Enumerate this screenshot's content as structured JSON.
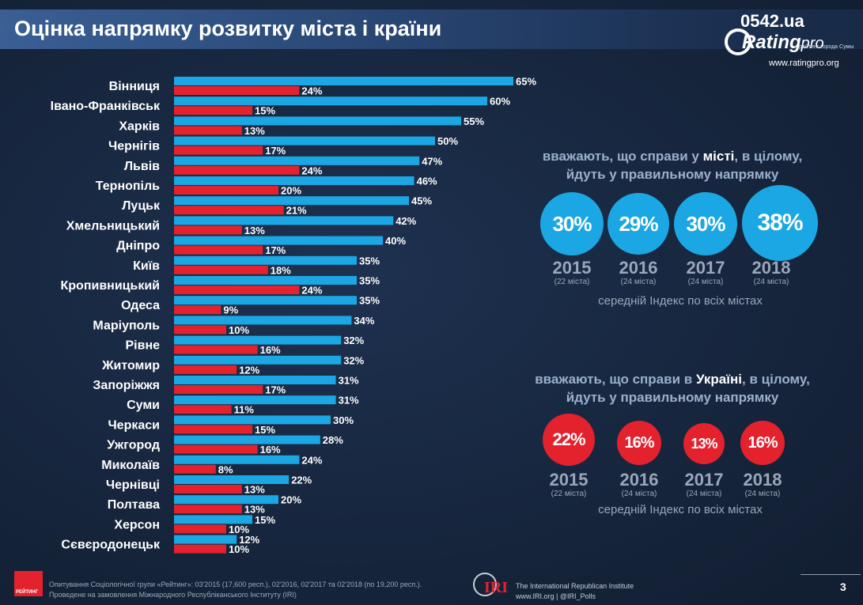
{
  "header": {
    "title": "Оцінка напрямку розвитку міста і країни"
  },
  "logo": {
    "site": "0542.ua",
    "brand": "Rating",
    "brand_suffix": "pro",
    "tagline": "рейтинг города Сумы",
    "url": "www.ratingpro.org"
  },
  "colors": {
    "city_series": "#1ba7e3",
    "country_series": "#e3222d",
    "background": "#15243a"
  },
  "chart_data": {
    "type": "bar",
    "orientation": "horizontal",
    "categories": [
      "Вінниця",
      "Івано-Франківськ",
      "Харків",
      "Чернігів",
      "Львів",
      "Тернопіль",
      "Луцьк",
      "Хмельницький",
      "Дніпро",
      "Київ",
      "Кропивницький",
      "Одеса",
      "Маріуполь",
      "Рівне",
      "Житомир",
      "Запоріжжя",
      "Суми",
      "Черкаси",
      "Ужгород",
      "Миколаїв",
      "Чернівці",
      "Полтава",
      "Херсон",
      "Сєвєродонецьк"
    ],
    "series": [
      {
        "values": [
          65,
          60,
          55,
          50,
          47,
          46,
          45,
          42,
          40,
          35,
          35,
          35,
          34,
          32,
          32,
          31,
          31,
          30,
          28,
          24,
          22,
          20,
          15,
          12
        ]
      },
      {
        "values": [
          24,
          15,
          13,
          17,
          24,
          20,
          21,
          13,
          17,
          18,
          24,
          9,
          10,
          16,
          12,
          17,
          11,
          15,
          16,
          8,
          13,
          13,
          10,
          10
        ]
      }
    ],
    "value_suffix": "%",
    "legend": "none",
    "grid": false
  },
  "city_block": {
    "heading_prefix": "вважають, що справи у ",
    "heading_bold": "місті",
    "heading_suffix": ", в цілому,",
    "heading_line2": "йдуть у правильному напрямку",
    "items": [
      {
        "value": "30%",
        "year": "2015",
        "note": "(22 міста)"
      },
      {
        "value": "29%",
        "year": "2016",
        "note": "(24 міста)"
      },
      {
        "value": "30%",
        "year": "2017",
        "note": "(24 міста)"
      },
      {
        "value": "38%",
        "year": "2018",
        "note": "(24 міста)"
      }
    ],
    "index_note": "середній Індекс по всіх містах"
  },
  "country_block": {
    "heading_prefix": "вважають, що справи в ",
    "heading_bold": "Україні",
    "heading_suffix": ", в цілому,",
    "heading_line2": "йдуть у правильному напрямку",
    "items": [
      {
        "value": "22%",
        "year": "2015",
        "note": "(22 міста)"
      },
      {
        "value": "16%",
        "year": "2016",
        "note": "(24 міста)"
      },
      {
        "value": "13%",
        "year": "2017",
        "note": "(24 міста)"
      },
      {
        "value": "16%",
        "year": "2018",
        "note": "(24 міста)"
      }
    ],
    "index_note": "середній Індекс по всіх містах"
  },
  "footer": {
    "rating_logo": "РЕЙТИНГ",
    "note_line1": "Опитування Соціологічної групи «Рейтинг»: 03'2015 (17,600 респ.), 02'2016, 02'2017 та 02'2018 (по 19,200 респ.).",
    "note_line2": "Проведене на замовлення Міжнародного Республіканського Інституту (IRI)",
    "iri_logo": "IRI",
    "iri_line1": "The International Republican Institute",
    "iri_line2": "www.IRI.org | @IRI_Polls",
    "page_number": "3"
  }
}
